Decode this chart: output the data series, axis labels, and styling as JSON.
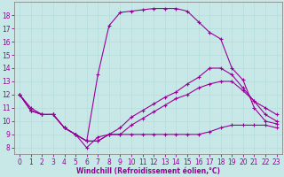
{
  "bg_color": "#c8e8e8",
  "line_color": "#990099",
  "xlabel": "Windchill (Refroidissement éolien,°C)",
  "xlim": [
    -0.5,
    23.5
  ],
  "ylim": [
    7.5,
    19.0
  ],
  "xticks": [
    0,
    1,
    2,
    3,
    4,
    5,
    6,
    7,
    8,
    9,
    10,
    11,
    12,
    13,
    14,
    15,
    16,
    17,
    18,
    19,
    20,
    21,
    22,
    23
  ],
  "yticks": [
    8,
    9,
    10,
    11,
    12,
    13,
    14,
    15,
    16,
    17,
    18
  ],
  "line_top_x": [
    0,
    1,
    2,
    3,
    4,
    5,
    6,
    7,
    8,
    9,
    10,
    11,
    12,
    13,
    14,
    15,
    16,
    17,
    18,
    19,
    20,
    21,
    22,
    23
  ],
  "line_top_y": [
    12,
    11,
    10.5,
    10.5,
    9.5,
    9.0,
    8.5,
    13.5,
    17.2,
    18.2,
    18.3,
    18.4,
    18.5,
    18.5,
    18.5,
    18.3,
    17.5,
    16.7,
    16.2,
    14.0,
    13.1,
    11.0,
    10.0,
    9.8
  ],
  "line_upper_x": [
    0,
    1,
    2,
    3,
    4,
    5,
    6,
    7,
    8,
    9,
    10,
    11,
    12,
    13,
    14,
    15,
    16,
    17,
    18,
    19,
    20,
    21,
    22,
    23
  ],
  "line_upper_y": [
    12,
    10.8,
    10.5,
    10.5,
    9.5,
    9.0,
    8.5,
    8.5,
    9.0,
    9.5,
    10.3,
    10.8,
    11.3,
    11.8,
    12.2,
    12.8,
    13.3,
    14.0,
    14.0,
    13.5,
    12.5,
    11.5,
    11.0,
    10.5
  ],
  "line_lower_x": [
    0,
    1,
    2,
    3,
    4,
    5,
    6,
    7,
    8,
    9,
    10,
    11,
    12,
    13,
    14,
    15,
    16,
    17,
    18,
    19,
    20,
    21,
    22,
    23
  ],
  "line_lower_y": [
    12,
    10.8,
    10.5,
    10.5,
    9.5,
    9.0,
    8.5,
    8.5,
    9.0,
    9.0,
    9.7,
    10.2,
    10.7,
    11.2,
    11.7,
    12.0,
    12.5,
    12.8,
    13.0,
    13.0,
    12.3,
    11.5,
    10.5,
    10.0
  ],
  "line_bot_x": [
    0,
    1,
    2,
    3,
    4,
    5,
    6,
    7,
    8,
    9,
    10,
    11,
    12,
    13,
    14,
    15,
    16,
    17,
    18,
    19,
    20,
    21,
    22,
    23
  ],
  "line_bot_y": [
    12,
    10.8,
    10.5,
    10.5,
    9.5,
    9.0,
    8.0,
    8.8,
    9.0,
    9.0,
    9.0,
    9.0,
    9.0,
    9.0,
    9.0,
    9.0,
    9.0,
    9.2,
    9.5,
    9.7,
    9.7,
    9.7,
    9.7,
    9.5
  ],
  "lw": 0.8,
  "ms": 2.0,
  "tick_fontsize": 5.5,
  "xlabel_fontsize": 5.5
}
